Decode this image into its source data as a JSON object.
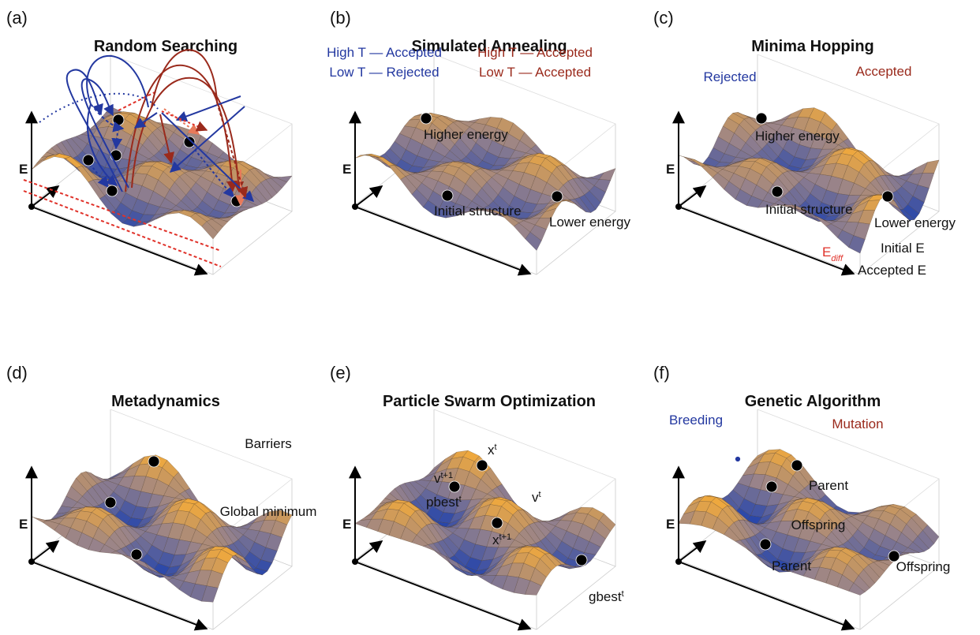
{
  "panels": [
    {
      "label": "(a)",
      "title": "Random Searching",
      "axis": "E",
      "annotations": []
    },
    {
      "label": "(b)",
      "title": "Simulated Annealing",
      "axis": "E",
      "annotations": [
        {
          "text": "High T — Accepted"
        },
        {
          "text": "Low T — Rejected"
        },
        {
          "text": "High T — Accepted"
        },
        {
          "text": "Low T — Accepted"
        },
        {
          "text": "Higher energy"
        },
        {
          "text": "Initial structure"
        },
        {
          "text": "Lower energy"
        }
      ]
    },
    {
      "label": "(c)",
      "title": "Minima Hopping",
      "axis": "E",
      "annotations": [
        {
          "text": "Rejected"
        },
        {
          "text": "Accepted"
        },
        {
          "text": "Higher energy"
        },
        {
          "text": "Initial structure"
        },
        {
          "text": "Lower energy"
        },
        {
          "text": "E",
          "sub": "diff"
        },
        {
          "text": "Initial E"
        },
        {
          "text": "Accepted E"
        }
      ]
    },
    {
      "label": "(d)",
      "title": "Metadynamics",
      "axis": "E",
      "annotations": [
        {
          "text": "Barriers"
        },
        {
          "text": "Global minimum"
        }
      ]
    },
    {
      "label": "(e)",
      "title": "Particle Swarm Optimization",
      "axis": "E",
      "annotations": [
        {
          "text": "x",
          "sup": "t"
        },
        {
          "text": "v",
          "sup": "t+1"
        },
        {
          "text": "pbest",
          "sup": "t"
        },
        {
          "text": "x",
          "sup": "t+1"
        },
        {
          "text": "v",
          "sup": "t"
        },
        {
          "text": "gbest",
          "sup": "t"
        }
      ]
    },
    {
      "label": "(f)",
      "title": "Genetic Algorithm",
      "axis": "E",
      "annotations": [
        {
          "text": "Breeding"
        },
        {
          "text": "Mutation"
        },
        {
          "text": "Parent"
        },
        {
          "text": "Offspring"
        },
        {
          "text": "Parent"
        },
        {
          "text": "Offspring"
        }
      ]
    }
  ]
}
